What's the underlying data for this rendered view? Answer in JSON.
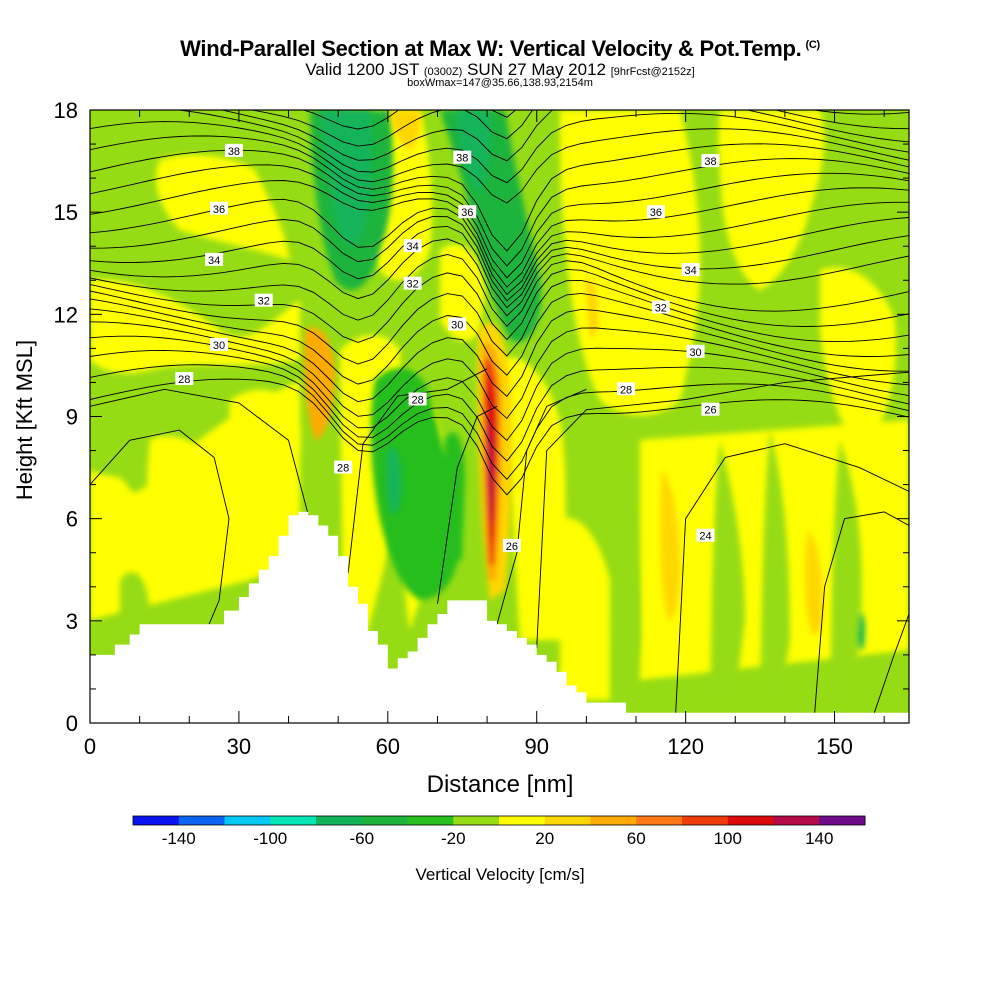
{
  "title": {
    "main": "Wind-Parallel Section at Max W: Vertical Velocity & Pot.Temp.",
    "copyright": "(C)",
    "valid_a": "Valid 1200 JST",
    "valid_z": "(0300Z)",
    "valid_b": "SUN 27 May 2012",
    "fcst": "[9hrFcst@2152z]",
    "box": "boxWmax=147@35.66,138.93,2154m"
  },
  "chart_data": {
    "type": "contour",
    "xlabel": "Distance [nm]",
    "ylabel": "Height [Kft MSL]",
    "xlim": [
      0,
      165
    ],
    "ylim": [
      0,
      18
    ],
    "x_ticks": [
      0,
      30,
      60,
      90,
      120,
      150
    ],
    "y_ticks": [
      0,
      3,
      6,
      9,
      12,
      15,
      18
    ],
    "colorbar": {
      "label": "Vertical Velocity [cm/s]",
      "tick_values": [
        -140,
        -100,
        -60,
        -20,
        20,
        60,
        100,
        140
      ],
      "levels": [
        -160,
        -140,
        -120,
        -100,
        -80,
        -60,
        -40,
        -20,
        0,
        20,
        40,
        60,
        80,
        100,
        120,
        140,
        160
      ],
      "colors": [
        "#0a14f0",
        "#0a64f0",
        "#00c8f5",
        "#00e6b4",
        "#12b45a",
        "#1eb43c",
        "#28be1e",
        "#96dc14",
        "#ffff00",
        "#ffd700",
        "#ffaa00",
        "#ff7814",
        "#f03c0a",
        "#dc0a0a",
        "#b40a46",
        "#6e0a8c"
      ]
    },
    "terrain": [
      [
        0,
        2
      ],
      [
        5,
        2.3
      ],
      [
        8,
        2.6
      ],
      [
        10,
        2.9
      ],
      [
        15,
        2.9
      ],
      [
        20,
        2.9
      ],
      [
        25,
        2.9
      ],
      [
        27,
        3.3
      ],
      [
        30,
        3.7
      ],
      [
        32,
        4.1
      ],
      [
        34,
        4.5
      ],
      [
        36,
        4.9
      ],
      [
        38,
        5.5
      ],
      [
        40,
        6.1
      ],
      [
        42,
        6.2
      ],
      [
        44,
        6.1
      ],
      [
        46,
        5.8
      ],
      [
        48,
        5.5
      ],
      [
        50,
        4.9
      ],
      [
        52,
        4.0
      ],
      [
        54,
        3.5
      ],
      [
        56,
        2.7
      ],
      [
        58,
        2.3
      ],
      [
        60,
        1.6
      ],
      [
        62,
        1.9
      ],
      [
        64,
        2.1
      ],
      [
        66,
        2.5
      ],
      [
        68,
        2.9
      ],
      [
        70,
        3.2
      ],
      [
        72,
        3.6
      ],
      [
        75,
        3.6
      ],
      [
        78,
        3.6
      ],
      [
        80,
        3.0
      ],
      [
        82,
        2.9
      ],
      [
        84,
        2.7
      ],
      [
        86,
        2.5
      ],
      [
        88,
        2.3
      ],
      [
        90,
        2.0
      ],
      [
        92,
        1.8
      ],
      [
        94,
        1.5
      ],
      [
        96,
        1.1
      ],
      [
        98,
        0.9
      ],
      [
        100,
        0.6
      ],
      [
        104,
        0.6
      ],
      [
        108,
        0.3
      ],
      [
        115,
        0.3
      ],
      [
        165,
        0.3
      ]
    ],
    "vertical_velocity_cells": [
      {
        "x": 48,
        "y": 10,
        "w": -40
      },
      {
        "x": 59,
        "y": 7,
        "w": -45
      },
      {
        "x": 62,
        "y": 6.5,
        "w": -70
      },
      {
        "x": 81,
        "y": 8,
        "w": 147
      },
      {
        "x": 81,
        "y": 10,
        "w": 100
      },
      {
        "x": 47,
        "y": 9,
        "w": 50
      },
      {
        "x": 120,
        "y": 5,
        "w": 35
      },
      {
        "x": 148,
        "y": 3.5,
        "w": 30
      },
      {
        "x": 155,
        "y": 2.5,
        "w": -40
      },
      {
        "x": 52,
        "y": 16,
        "w": -55
      },
      {
        "x": 84,
        "y": 14,
        "w": -40
      }
    ],
    "theta_contour_labels": [
      {
        "text": "38",
        "x": 29,
        "y": 16.8
      },
      {
        "text": "36",
        "x": 26,
        "y": 15.1
      },
      {
        "text": "34",
        "x": 25,
        "y": 13.6
      },
      {
        "text": "32",
        "x": 35,
        "y": 12.4
      },
      {
        "text": "30",
        "x": 26,
        "y": 11.1
      },
      {
        "text": "28",
        "x": 19,
        "y": 10.1
      },
      {
        "text": "38",
        "x": 75,
        "y": 16.6
      },
      {
        "text": "36",
        "x": 76,
        "y": 15.0
      },
      {
        "text": "34",
        "x": 65,
        "y": 14.0
      },
      {
        "text": "32",
        "x": 65,
        "y": 12.9
      },
      {
        "text": "30",
        "x": 74,
        "y": 11.7
      },
      {
        "text": "28",
        "x": 66,
        "y": 9.5
      },
      {
        "text": "28",
        "x": 51,
        "y": 7.5
      },
      {
        "text": "26",
        "x": 85,
        "y": 5.2
      },
      {
        "text": "28",
        "x": 108,
        "y": 9.8
      },
      {
        "text": "26",
        "x": 125,
        "y": 9.2
      },
      {
        "text": "30",
        "x": 122,
        "y": 10.9
      },
      {
        "text": "32",
        "x": 115,
        "y": 12.2
      },
      {
        "text": "34",
        "x": 121,
        "y": 13.3
      },
      {
        "text": "36",
        "x": 114,
        "y": 15.0
      },
      {
        "text": "38",
        "x": 125,
        "y": 16.5
      },
      {
        "text": "24",
        "x": 124,
        "y": 5.5
      }
    ]
  }
}
